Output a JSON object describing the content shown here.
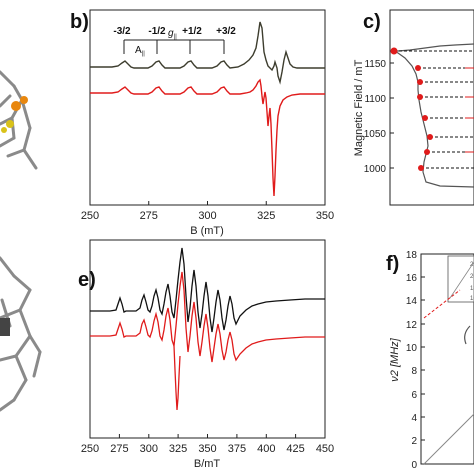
{
  "panels": {
    "b": {
      "label": "b)",
      "xlabel": "B (mT)",
      "xticks": [
        "250",
        "275",
        "300",
        "325",
        "350"
      ],
      "mi_labels": [
        "-3/2",
        "-1/2",
        "+1/2",
        "+3/2"
      ],
      "a_label": "A",
      "a_sub": "||",
      "g_label": "g",
      "g_sub": "||"
    },
    "c": {
      "label": "c)",
      "ylabel": "Magnetic Field / mT",
      "yticks": [
        "1150",
        "1100",
        "1050",
        "1000"
      ]
    },
    "e": {
      "label": "e)",
      "xlabel": "B/mT",
      "xticks": [
        "250",
        "275",
        "300",
        "325",
        "350",
        "375",
        "400",
        "425",
        "450"
      ]
    },
    "f": {
      "label": "f)",
      "ylabel": "ν2 [MHz]",
      "yticks": [
        "18",
        "16",
        "14",
        "12",
        "10",
        "8",
        "6",
        "4",
        "2",
        "0"
      ]
    }
  },
  "colors": {
    "experimental": "#3d3d2e",
    "experimental_e": "#111111",
    "simulated": "#e01b1b",
    "molecule": "#8a8a8a",
    "orange_atom": "#e8870f",
    "yellow_atom": "#d9c21a"
  }
}
